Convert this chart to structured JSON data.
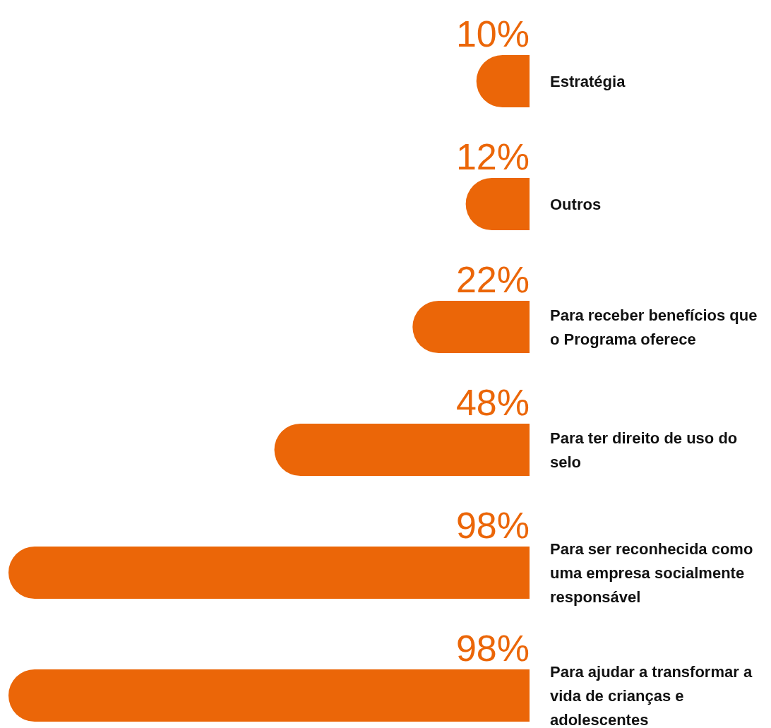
{
  "chart_data": {
    "type": "bar",
    "orientation": "horizontal",
    "categories": [
      "Estratégia",
      "Outros",
      "Para receber benefícios que o Programa oferece",
      "Para ter direito de uso do selo",
      "Para ser reconhecida como uma empresa socialmente responsável",
      "Para ajudar a transformar a vida de crianças e adolescentes"
    ],
    "values": [
      10,
      12,
      22,
      48,
      98,
      98
    ],
    "value_labels": [
      "10%",
      "12%",
      "22%",
      "48%",
      "98%",
      "98%"
    ],
    "color": "#eb6608"
  }
}
